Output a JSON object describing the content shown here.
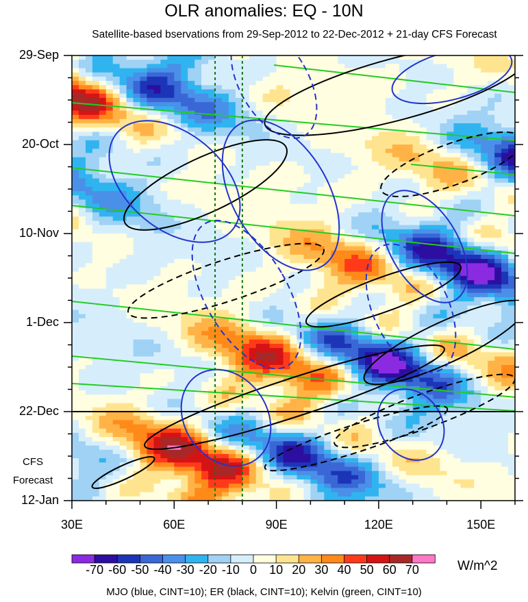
{
  "title": "OLR anomalies: EQ - 10N",
  "subtitle": "Satellite-based bservations from 29-Sep-2012 to 22-Dec-2012 + 21-day CFS Forecast",
  "footer": "MJO (blue, CINT=10); ER (black, CINT=10); Kelvin (green, CINT=10)",
  "units": "W/m^2",
  "cfs_label": [
    "CFS",
    "Forecast"
  ],
  "chart_data": {
    "type": "heatmap",
    "x_axis": {
      "ticks": [
        "30E",
        "60E",
        "90E",
        "120E",
        "150E"
      ],
      "tick_values": [
        30,
        60,
        90,
        120,
        150
      ],
      "range": [
        30,
        160
      ]
    },
    "y_axis": {
      "ticks": [
        "29-Sep",
        "20-Oct",
        "10-Nov",
        "1-Dec",
        "22-Dec",
        "12-Jan"
      ],
      "tick_days": [
        0,
        21,
        42,
        63,
        84,
        105
      ],
      "range": [
        0,
        105
      ],
      "reversed": true
    },
    "observation_end_line": "22-Dec",
    "reference_lines_lon": [
      72,
      80
    ],
    "colorbar": {
      "labels": [
        "-70",
        "-60",
        "-50",
        "-40",
        "-30",
        "-20",
        "-10",
        "0",
        "10",
        "20",
        "30",
        "40",
        "50",
        "60",
        "70"
      ],
      "colors": [
        "#8a2be2",
        "#2c0fa0",
        "#1c35b8",
        "#3a67d6",
        "#4a90e8",
        "#30b4f0",
        "#9fd2f4",
        "#d6eefc",
        "#fffee0",
        "#ffe490",
        "#ffb347",
        "#ff8a1a",
        "#ff3a1a",
        "#d41414",
        "#a82828",
        "#ff78c6"
      ]
    }
  }
}
